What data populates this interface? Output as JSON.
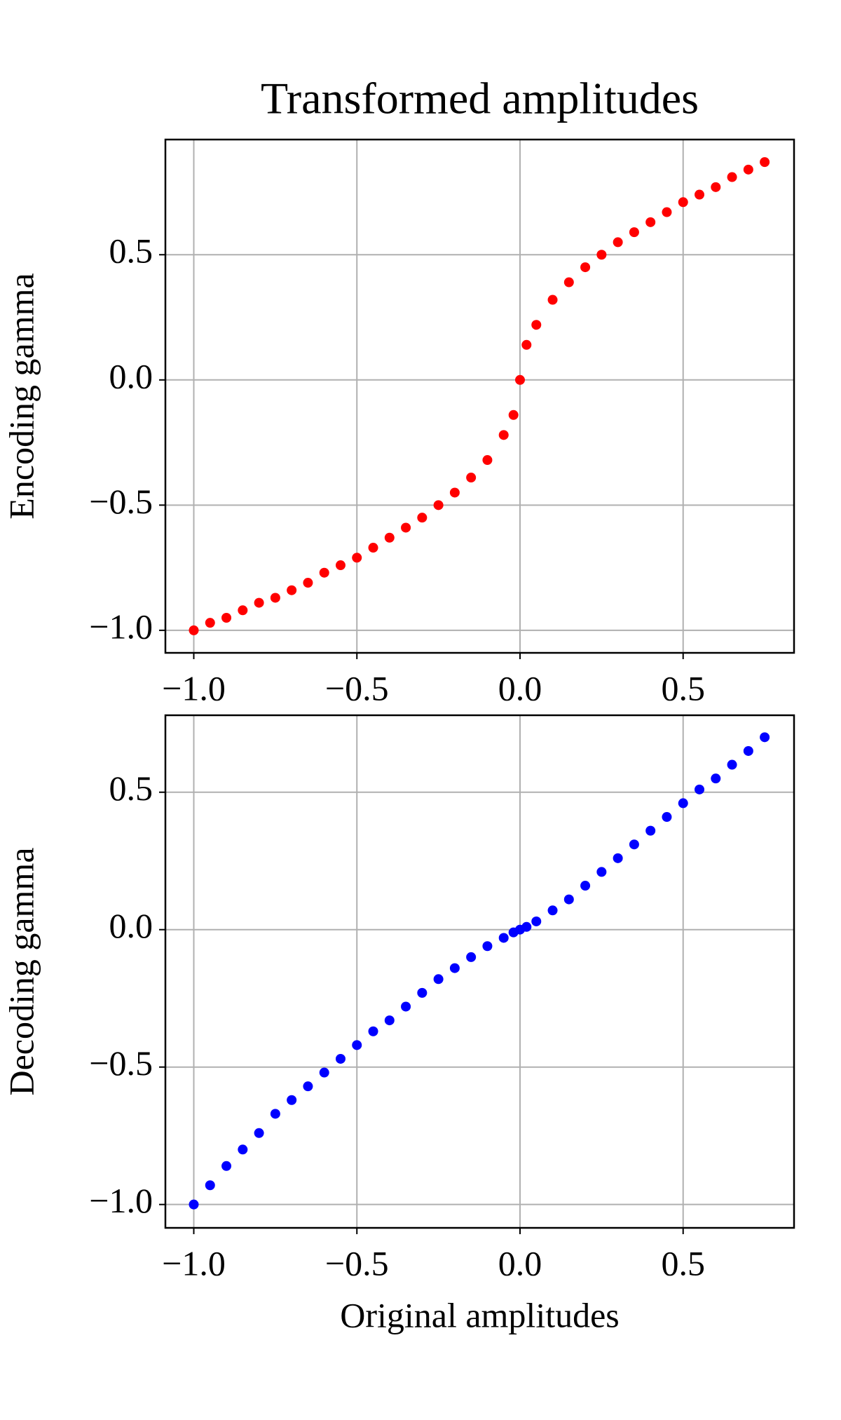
{
  "chart_data": [
    {
      "type": "scatter",
      "title": "Transformed amplitudes",
      "ylabel": "Encoding gamma",
      "color": "#ff0000",
      "grid": true,
      "x": [
        -1,
        -0.95,
        -0.9,
        -0.85,
        -0.8,
        -0.75,
        -0.7,
        -0.65,
        -0.6,
        -0.55,
        -0.5,
        -0.45,
        -0.4,
        -0.35,
        -0.3,
        -0.25,
        -0.2,
        -0.15,
        -0.1,
        -0.05,
        -0.02,
        0,
        0.02,
        0.05,
        0.1,
        0.15,
        0.2,
        0.25,
        0.3,
        0.35,
        0.4,
        0.45,
        0.5,
        0.55,
        0.6,
        0.65,
        0.7,
        0.75
      ],
      "y": [
        -1.0,
        -0.97,
        -0.95,
        -0.92,
        -0.89,
        -0.87,
        -0.84,
        -0.81,
        -0.77,
        -0.74,
        -0.71,
        -0.67,
        -0.63,
        -0.59,
        -0.55,
        -0.5,
        -0.45,
        -0.39,
        -0.32,
        -0.22,
        -0.14,
        0,
        0.14,
        0.22,
        0.32,
        0.39,
        0.45,
        0.5,
        0.55,
        0.59,
        0.63,
        0.67,
        0.71,
        0.74,
        0.77,
        0.81,
        0.84,
        0.87
      ],
      "xlim": [
        -1.087,
        0.84
      ],
      "ylim": [
        -1.09,
        0.96
      ],
      "xticks": [
        {
          "value": -1.0,
          "label": "−1.0"
        },
        {
          "value": -0.5,
          "label": "−0.5"
        },
        {
          "value": 0,
          "label": "0.0"
        },
        0.5
      ],
      "yticks": [
        {
          "value": -1.0,
          "label": "−1.0"
        },
        {
          "value": -0.5,
          "label": "−0.5"
        },
        {
          "value": 0,
          "label": "0.0"
        },
        0.5
      ]
    },
    {
      "type": "scatter",
      "xlabel": "Original amplitudes",
      "ylabel": "Decoding gamma",
      "color": "#0000ff",
      "grid": true,
      "x": [
        -1,
        -0.95,
        -0.9,
        -0.85,
        -0.8,
        -0.75,
        -0.7,
        -0.65,
        -0.6,
        -0.55,
        -0.5,
        -0.45,
        -0.4,
        -0.35,
        -0.3,
        -0.25,
        -0.2,
        -0.15,
        -0.1,
        -0.05,
        -0.02,
        0,
        0.02,
        0.05,
        0.1,
        0.15,
        0.2,
        0.25,
        0.3,
        0.35,
        0.4,
        0.45,
        0.5,
        0.55,
        0.6,
        0.65,
        0.7,
        0.75
      ],
      "y": [
        -1.0,
        -0.93,
        -0.86,
        -0.8,
        -0.74,
        -0.67,
        -0.62,
        -0.57,
        -0.52,
        -0.47,
        -0.42,
        -0.37,
        -0.33,
        -0.28,
        -0.23,
        -0.18,
        -0.14,
        -0.1,
        -0.06,
        -0.03,
        -0.01,
        0,
        0.01,
        0.03,
        0.07,
        0.11,
        0.16,
        0.21,
        0.26,
        0.31,
        0.36,
        0.41,
        0.46,
        0.51,
        0.55,
        0.6,
        0.65,
        0.7
      ],
      "xlim": [
        -1.087,
        0.84
      ],
      "ylim": [
        -1.085,
        0.78
      ],
      "xticks": [
        {
          "value": -1.0,
          "label": "−1.0"
        },
        {
          "value": -0.5,
          "label": "−0.5"
        },
        {
          "value": 0,
          "label": "0.0"
        },
        0.5
      ],
      "yticks": [
        {
          "value": -1.0,
          "label": "−1.0"
        },
        {
          "value": -0.5,
          "label": "−0.5"
        },
        {
          "value": 0,
          "label": "0.0"
        },
        0.5
      ]
    }
  ]
}
